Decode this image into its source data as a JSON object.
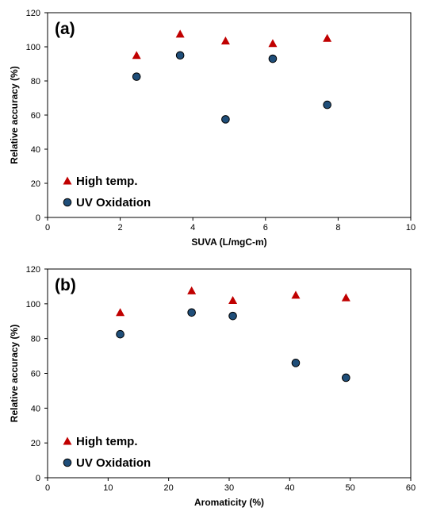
{
  "chart_data": [
    {
      "type": "scatter",
      "panel_label": "(a)",
      "xlabel": "SUVA (L/mgC-m)",
      "ylabel": "Relative accuracy (%)",
      "xlim": [
        0,
        10
      ],
      "ylim": [
        0,
        120
      ],
      "xticks": [
        0,
        2,
        4,
        6,
        8,
        10
      ],
      "yticks": [
        0,
        20,
        40,
        60,
        80,
        100,
        120
      ],
      "grid": false,
      "legend_position": "bottom-left",
      "series": [
        {
          "name": "High temp.",
          "marker": "triangle",
          "color": "#c00000",
          "x": [
            2.45,
            3.65,
            4.9,
            6.2,
            7.7
          ],
          "y": [
            95,
            107.5,
            103.5,
            102,
            105
          ]
        },
        {
          "name": "UV Oxidation",
          "marker": "circle",
          "color": "#1f4e79",
          "x": [
            2.45,
            3.65,
            4.9,
            6.2,
            7.7
          ],
          "y": [
            82.5,
            95,
            57.5,
            93,
            66
          ]
        }
      ]
    },
    {
      "type": "scatter",
      "panel_label": "(b)",
      "xlabel": "Aromaticity (%)",
      "ylabel": "Relative accuracy (%)",
      "xlim": [
        0,
        60
      ],
      "ylim": [
        0,
        120
      ],
      "xticks": [
        0,
        10,
        20,
        30,
        40,
        50,
        60
      ],
      "yticks": [
        0,
        20,
        40,
        60,
        80,
        100,
        120
      ],
      "grid": false,
      "legend_position": "bottom-left",
      "series": [
        {
          "name": "High temp.",
          "marker": "triangle",
          "color": "#c00000",
          "x": [
            12,
            23.8,
            30.6,
            41,
            49.3
          ],
          "y": [
            95,
            107.5,
            102,
            105,
            103.5
          ]
        },
        {
          "name": "UV Oxidation",
          "marker": "circle",
          "color": "#1f4e79",
          "x": [
            12,
            23.8,
            30.6,
            41,
            49.3
          ],
          "y": [
            82.5,
            95,
            93,
            66,
            57.5
          ]
        }
      ]
    }
  ]
}
